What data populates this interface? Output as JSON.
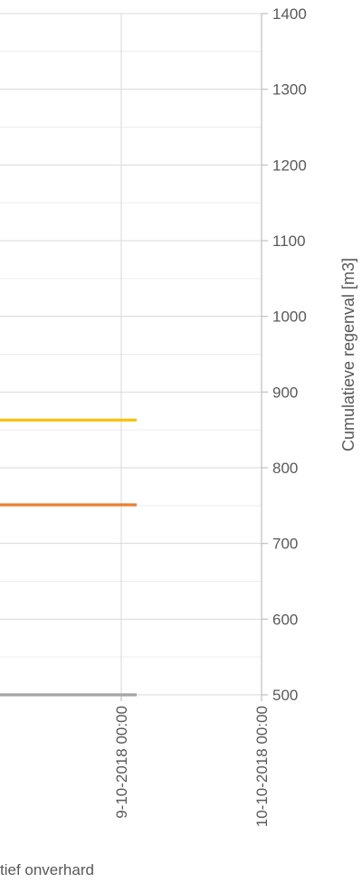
{
  "chart_data": {
    "type": "line",
    "y_axis_position": "right",
    "ylabel": "Cumulatieve regenval [m3]",
    "ylim": [
      500,
      1400
    ],
    "ytick_step": 100,
    "ytick_labels": [
      "500",
      "600",
      "700",
      "800",
      "900",
      "1000",
      "1100",
      "1200",
      "1300",
      "1400"
    ],
    "minor_gridlines_per_major": 2,
    "grid": true,
    "x_tick_labels": [
      "9-10-2018 00:00",
      "10-10-2018 00:00"
    ],
    "series": [
      {
        "color": "#FFC000",
        "y": 863
      },
      {
        "color": "#ED7D31",
        "y": 751
      },
      {
        "color": "#A5A5A5",
        "y": 500
      }
    ],
    "legend_fragment": "tief onverhard"
  }
}
